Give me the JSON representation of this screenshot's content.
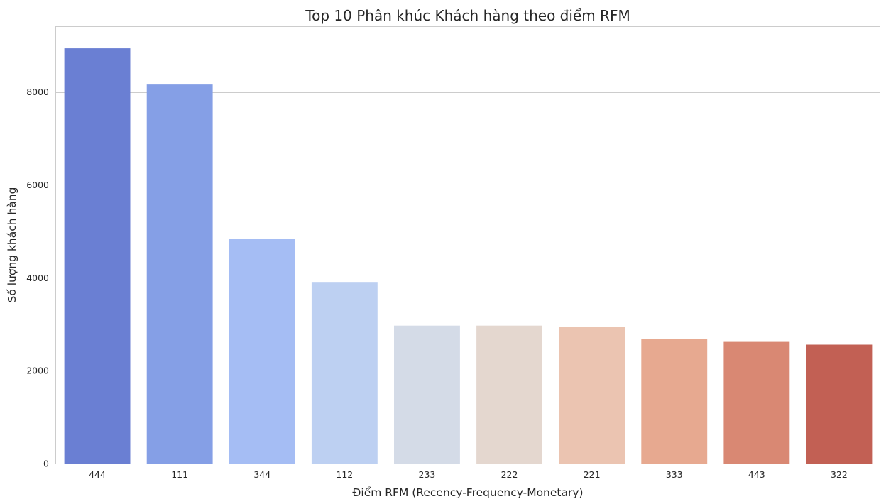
{
  "chart_data": {
    "type": "bar",
    "title": "Top 10 Phân khúc Khách hàng theo điểm RFM",
    "xlabel": "Điểm RFM (Recency-Frequency-Monetary)",
    "ylabel": "Số lượng khách hàng",
    "categories": [
      "444",
      "111",
      "344",
      "112",
      "233",
      "222",
      "221",
      "333",
      "443",
      "322"
    ],
    "values": [
      8940,
      8160,
      4840,
      3910,
      2970,
      2970,
      2950,
      2680,
      2620,
      2560
    ],
    "colors": [
      "#6a7fd3",
      "#859fe6",
      "#a5bdf4",
      "#bdd0f2",
      "#d4dbe7",
      "#e4d7cf",
      "#ebc4b1",
      "#e7a990",
      "#d98873",
      "#c26054"
    ],
    "ylim": [
      0,
      9400
    ],
    "yticks": [
      0,
      2000,
      4000,
      6000,
      8000
    ],
    "ytick_labels": [
      "0",
      "2000",
      "4000",
      "6000",
      "8000"
    ],
    "grid": "horizontal",
    "legend": "none"
  }
}
